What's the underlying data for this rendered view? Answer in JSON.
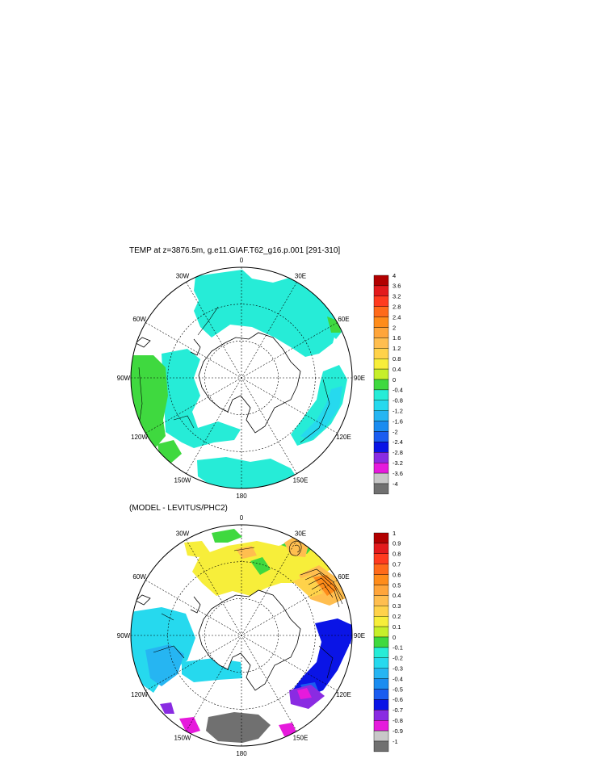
{
  "panels": [
    {
      "title": "TEMP at z=3876.5m, g.e11.GIAF.T62_g16.p.001 [291-310]",
      "colorbar": {
        "labels": [
          "4",
          "3.6",
          "3.2",
          "2.8",
          "2.4",
          "2",
          "1.6",
          "1.2",
          "0.8",
          "0.4",
          "0",
          "-0.4",
          "-0.8",
          "-1.2",
          "-1.6",
          "-2",
          "-2.4",
          "-2.8",
          "-3.2",
          "-3.6",
          "-4"
        ]
      }
    },
    {
      "title": "(MODEL - LEVITUS/PHC2)",
      "colorbar": {
        "labels": [
          "1",
          "0.9",
          "0.8",
          "0.7",
          "0.6",
          "0.5",
          "0.4",
          "0.3",
          "0.2",
          "0.1",
          "0",
          "-0.1",
          "-0.2",
          "-0.3",
          "-0.4",
          "-0.5",
          "-0.6",
          "-0.7",
          "-0.8",
          "-0.9",
          "-1"
        ]
      }
    }
  ],
  "longitude_labels": [
    "0",
    "30E",
    "60E",
    "90E",
    "120E",
    "150E",
    "180",
    "150W",
    "120W",
    "90W",
    "60W",
    "30W"
  ],
  "colorbar_colors": [
    "#b20000",
    "#e31a1c",
    "#ff3b1f",
    "#ff6a1a",
    "#ff8c1a",
    "#ffa53a",
    "#ffbe4f",
    "#ffd24a",
    "#f7ee3a",
    "#c6ef2a",
    "#3fd93f",
    "#26ecd7",
    "#26d9ee",
    "#26b5f2",
    "#1a8cf0",
    "#1a5cf0",
    "#0a14e6",
    "#8a2be2",
    "#e61adc",
    "#c8c8c8",
    "#707070"
  ]
}
